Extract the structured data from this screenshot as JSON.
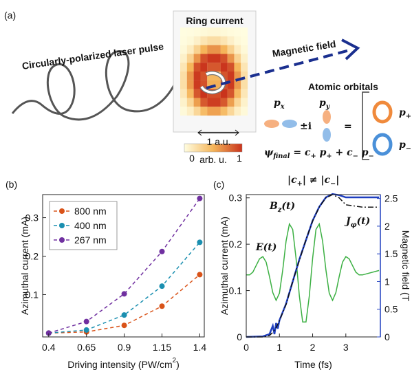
{
  "panel_labels": [
    "(a)",
    "(b)",
    "(c)"
  ],
  "diagram": {
    "laser": "Circularly-polarized laser pulse",
    "ring": "Ring current",
    "field": "Magnetic field",
    "orbitals": "Atomic orbitals",
    "px": [
      "p",
      "x"
    ],
    "py": [
      "p",
      "y"
    ],
    "pm_i": "±i",
    "equals": "=",
    "p_plus": [
      "p",
      "+"
    ],
    "p_minus": [
      "p",
      "−"
    ],
    "scale": "1 a.u.",
    "cbar_min": "0",
    "cbar_unit": "arb. u.",
    "cbar_max": "1",
    "psi": [
      "ψ",
      "final",
      " = c",
      "+",
      " p",
      "+",
      " + c",
      "−",
      " p",
      "−"
    ],
    "ineq": [
      "|c",
      "+",
      "| ≠ |c",
      "−",
      "|"
    ]
  },
  "chart_data": [
    {
      "type": "line",
      "x": [
        0.4,
        0.65,
        0.9,
        1.15,
        1.4
      ],
      "xlim": [
        0.36,
        1.43
      ],
      "xticks": [
        0.4,
        0.65,
        0.9,
        1.15,
        1.4
      ],
      "ylim": [
        -0.01,
        0.36
      ],
      "yticks": [
        0.1,
        0.2,
        0.3
      ],
      "xlabel": [
        "Driving intensity (PW/cm",
        "2",
        ")"
      ],
      "ylabel": "Azimuthal current (mA)",
      "legend": "upper left",
      "markers": true,
      "dash": "dashed",
      "series": [
        {
          "name": "800 nm",
          "color": "#d95319",
          "values": [
            0,
            0.003,
            0.02,
            0.07,
            0.152
          ]
        },
        {
          "name": "400 nm",
          "color": "#1a8fb0",
          "values": [
            0,
            0.008,
            0.047,
            0.122,
            0.236
          ]
        },
        {
          "name": "267 nm",
          "color": "#7030a0",
          "values": [
            0,
            0.03,
            0.102,
            0.212,
            0.35
          ]
        }
      ]
    },
    {
      "type": "line",
      "xlim": [
        0,
        4.04
      ],
      "xticks": [
        0,
        1,
        2,
        3
      ],
      "ylim": [
        0,
        0.307
      ],
      "yticks": [
        0,
        0.1,
        0.2,
        0.3
      ],
      "y2lim": [
        0,
        2.57
      ],
      "y2ticks": [
        0,
        0.5,
        1,
        1.5,
        2,
        2.5
      ],
      "y2color": "#1f3fbf",
      "xlabel": "Time (fs)",
      "ylabel": "Azimuthal current (mA)",
      "y2label": "Magnetic field (T",
      "series": [
        {
          "name": "E(t)",
          "color": "#3cb043",
          "axis": "y2",
          "x": [
            0,
            0.1,
            0.2,
            0.3,
            0.4,
            0.5,
            0.6,
            0.7,
            0.8,
            0.9,
            1.0,
            1.1,
            1.2,
            1.3,
            1.4,
            1.5,
            1.6,
            1.7,
            1.8,
            1.9,
            2.0,
            2.1,
            2.2,
            2.3,
            2.4,
            2.5,
            2.6,
            2.7,
            2.8,
            2.9,
            3.0,
            3.1,
            3.2,
            3.3,
            3.4,
            3.5,
            4.0
          ],
          "values": [
            1.12,
            1.12,
            1.17,
            1.29,
            1.41,
            1.45,
            1.35,
            1.09,
            0.8,
            0.66,
            0.79,
            1.21,
            1.73,
            2.04,
            1.94,
            1.42,
            0.74,
            0.27,
            0.27,
            0.74,
            1.42,
            1.94,
            2.04,
            1.73,
            1.21,
            0.79,
            0.66,
            0.8,
            1.09,
            1.35,
            1.45,
            1.41,
            1.29,
            1.17,
            1.12,
            1.12,
            1.2
          ]
        },
        {
          "name": [
            "B",
            "z",
            "(t)"
          ],
          "color": "#1f3fbf",
          "axis": "y2",
          "width": 2.5,
          "x": [
            0,
            0.5,
            0.7,
            0.8,
            0.85,
            0.9,
            0.95,
            1.0,
            1.2,
            1.4,
            1.6,
            1.8,
            2.0,
            2.2,
            2.4,
            2.6,
            2.8,
            3.0,
            3.5,
            4.0
          ],
          "values": [
            0,
            0.01,
            0.05,
            0.2,
            0.05,
            0.25,
            0.15,
            0.3,
            0.6,
            1.0,
            1.4,
            1.75,
            2.1,
            2.35,
            2.52,
            2.58,
            2.56,
            2.52,
            2.52,
            2.52
          ]
        },
        {
          "name": [
            "J",
            "φ",
            "(t)"
          ],
          "color": "#111111",
          "axis": "y",
          "dash": "dashdot",
          "x": [
            0,
            0.5,
            0.7,
            0.8,
            0.9,
            1.0,
            1.2,
            1.4,
            1.6,
            1.8,
            2.0,
            2.2,
            2.4,
            2.6,
            2.8,
            3.0,
            3.5,
            4.0
          ],
          "values": [
            0,
            0,
            0.003,
            0.01,
            0.02,
            0.035,
            0.07,
            0.12,
            0.165,
            0.21,
            0.25,
            0.28,
            0.3,
            0.307,
            0.3,
            0.285,
            0.28,
            0.28
          ]
        }
      ]
    }
  ]
}
